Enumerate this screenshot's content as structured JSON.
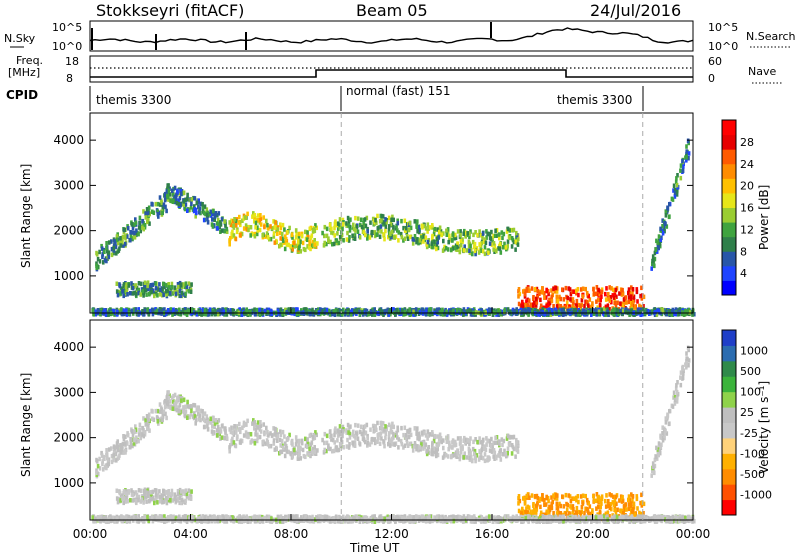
{
  "header": {
    "station": "Stokkseyri (fitACF)",
    "beam": "Beam 05",
    "date": "24/Jul/2016"
  },
  "noise_panel": {
    "left_label": "N.Sky",
    "right_label": "N.Search",
    "left_ticks": [
      "10^5",
      "10^0"
    ],
    "right_ticks": [
      "10^5",
      "10^0"
    ]
  },
  "freq_panel": {
    "left_label_1": "Freq.",
    "left_label_2": "[MHz]",
    "right_label": "Nave",
    "left_ticks": [
      "18",
      "8"
    ],
    "right_ticks": [
      "60",
      "0"
    ]
  },
  "cpid_panel": {
    "label": "CPID",
    "modes": [
      {
        "name": "themis 3300",
        "start_hour": 0,
        "end_hour": 10
      },
      {
        "name": "normal (fast) 151",
        "start_hour": 10,
        "end_hour": 22
      },
      {
        "name": "themis 3300",
        "start_hour": 18.9,
        "end_hour": 24
      }
    ]
  },
  "axes": {
    "x_label": "Time UT",
    "x_ticks": [
      "00:00",
      "04:00",
      "08:00",
      "12:00",
      "16:00",
      "20:00",
      "00:00"
    ],
    "x_range_hours": [
      0,
      24
    ],
    "y_label": "Slant Range [km]",
    "y_ticks": [
      1000,
      2000,
      3000,
      4000
    ],
    "y_range_km": [
      180,
      4600
    ]
  },
  "colorbars": {
    "power": {
      "label": "Power [dB]",
      "ticks": [
        "28",
        "24",
        "20",
        "16",
        "12",
        "8",
        "4"
      ],
      "colors": [
        "#0000ff",
        "#1f44ff",
        "#2856a8",
        "#2f7f4a",
        "#3fa33f",
        "#9acd32",
        "#e6e619",
        "#ffc000",
        "#ff8c00",
        "#ff5a00",
        "#e60000",
        "#ff0000"
      ]
    },
    "velocity": {
      "label": "Velocity [m s⁻¹]",
      "ticks": [
        "1000",
        "500",
        "100",
        "25",
        "-25",
        "-100",
        "-500",
        "-1000"
      ],
      "colors": [
        "#1f3fc8",
        "#2b6cb0",
        "#2f8a4a",
        "#3bb33b",
        "#8fd24a",
        "#bfbfbf",
        "#c8c8c8",
        "#ffd27a",
        "#ffb000",
        "#ff8c00",
        "#ff5000",
        "#ff0000"
      ]
    }
  },
  "chart_data": {
    "type": "heatmap",
    "title": "Stokkseyri (fitACF)",
    "xlabel": "Time UT",
    "ylabel": "Slant Range [km]",
    "xlim_hours": [
      0,
      24
    ],
    "ylim_km": [
      180,
      4600
    ],
    "grid": false,
    "echo_regions": [
      {
        "t0": 0.2,
        "t1": 3.0,
        "r0": 1400,
        "r1": 2700,
        "kind": "arc_rising",
        "power_db": 10,
        "velocity": 25
      },
      {
        "t0": 3.0,
        "t1": 5.5,
        "r0": 2100,
        "r1": 2950,
        "kind": "arc_falling",
        "power_db": 9,
        "velocity": 25
      },
      {
        "t0": 5.5,
        "t1": 9.0,
        "r0": 1500,
        "r1": 2500,
        "kind": "band",
        "power_db": 16,
        "velocity": 25
      },
      {
        "t0": 9.2,
        "t1": 17.0,
        "r0": 1500,
        "r1": 2400,
        "kind": "band",
        "power_db": 12,
        "velocity": 25
      },
      {
        "t0": 1.0,
        "t1": 4.0,
        "r0": 600,
        "r1": 900,
        "kind": "patch",
        "power_db": 10,
        "velocity": 25
      },
      {
        "t0": 17.0,
        "t1": 22.0,
        "r0": 250,
        "r1": 800,
        "kind": "patch",
        "power_db": 24,
        "velocity": -100
      },
      {
        "t0": 22.3,
        "t1": 23.8,
        "r0": 1300,
        "r1": 3900,
        "kind": "arc_rising",
        "power_db": 8,
        "velocity": 25
      },
      {
        "t0": 0.0,
        "t1": 24.0,
        "r0": 180,
        "r1": 320,
        "kind": "near_range",
        "power_db": 8,
        "velocity": 25
      }
    ]
  }
}
